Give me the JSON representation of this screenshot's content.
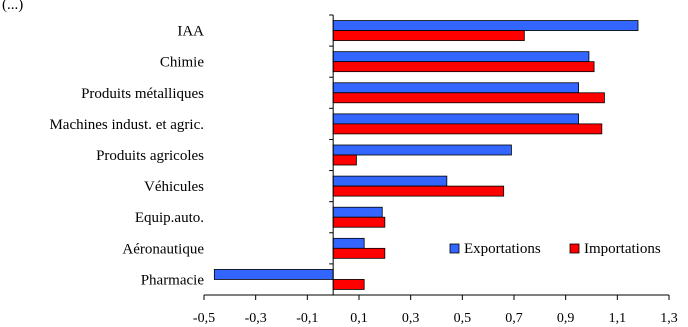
{
  "chart_data": {
    "type": "bar",
    "orientation": "horizontal",
    "categories": [
      "IAA",
      "Chimie",
      "Produits métalliques",
      "Machines indust. et agric.",
      "Produits agricoles",
      "Véhicules",
      "Equip.auto.",
      "Aéronautique",
      "Pharmacie"
    ],
    "series": [
      {
        "name": "Exportations",
        "color": "#3366ff",
        "values": [
          1.18,
          0.99,
          0.95,
          0.95,
          0.69,
          0.44,
          0.19,
          0.12,
          -0.46
        ]
      },
      {
        "name": "Importations",
        "color": "#ff0000",
        "values": [
          0.74,
          1.01,
          1.05,
          1.04,
          0.09,
          0.66,
          0.2,
          0.2,
          0.12
        ]
      }
    ],
    "xlim": [
      -0.5,
      1.3
    ],
    "xticks": [
      "-0,5",
      "-0,3",
      "-0,1",
      "0,1",
      "0,3",
      "0,5",
      "0,7",
      "0,9",
      "1,1",
      "1,3"
    ],
    "header_text": "(...)",
    "legend_position": "bottom-right",
    "grid": false
  }
}
